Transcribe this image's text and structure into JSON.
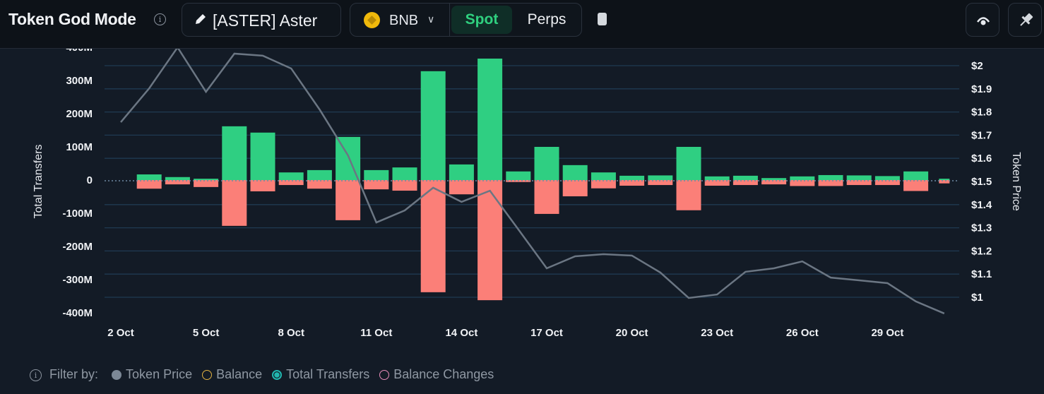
{
  "header": {
    "title": "Token God Mode",
    "token_label": "[ASTER] Aster",
    "chain_label": "BNB",
    "market_tabs": [
      {
        "label": "Spot",
        "active": true
      },
      {
        "label": "Perps",
        "active": false
      }
    ],
    "icons": [
      "info-icon",
      "pencil-icon",
      "bnb-coin-icon",
      "chevron-down-icon",
      "copy-icon",
      "eye-icon",
      "pin-icon"
    ]
  },
  "legend": {
    "filter_label": "Filter by:",
    "items": [
      {
        "label": "Token Price",
        "color": "#7c8896",
        "state": "filled"
      },
      {
        "label": "Balance",
        "color": "#e3b341",
        "state": "outline"
      },
      {
        "label": "Total Transfers",
        "color": "#21b8b0",
        "state": "selected"
      },
      {
        "label": "Balance Changes",
        "color": "#e58bb8",
        "state": "outline"
      }
    ]
  },
  "chart_data": {
    "type": "bar+line",
    "ylabel": "Total Transfers",
    "ylabel_right": "Token Price",
    "ylim": [
      -400000000,
      400000000
    ],
    "ylim_right": [
      0.9,
      2.1
    ],
    "yticks": [
      "400M",
      "300M",
      "200M",
      "100M",
      "0",
      "-100M",
      "-200M",
      "-300M",
      "-400M"
    ],
    "yticks_right": [
      "$2",
      "$1.9",
      "$1.8",
      "$1.7",
      "$1.6",
      "$1.5",
      "$1.4",
      "$1.3",
      "$1.2",
      "$1.1",
      "$1"
    ],
    "xticks": [
      "2 Oct",
      "5 Oct",
      "8 Oct",
      "11 Oct",
      "14 Oct",
      "17 Oct",
      "20 Oct",
      "23 Oct",
      "26 Oct",
      "29 Oct"
    ],
    "grid": true,
    "x": [
      "2 Oct",
      "3 Oct",
      "4 Oct",
      "5 Oct",
      "6 Oct",
      "7 Oct",
      "8 Oct",
      "9 Oct",
      "10 Oct",
      "11 Oct",
      "12 Oct",
      "13 Oct",
      "14 Oct",
      "15 Oct",
      "16 Oct",
      "17 Oct",
      "18 Oct",
      "19 Oct",
      "20 Oct",
      "21 Oct",
      "22 Oct",
      "23 Oct",
      "24 Oct",
      "25 Oct",
      "26 Oct",
      "27 Oct",
      "28 Oct",
      "29 Oct",
      "30 Oct",
      "31 Oct"
    ],
    "series": [
      {
        "name": "Token Price",
        "axis": "right",
        "color": "#6b7683",
        "values": [
          1.756,
          1.902,
          2.079,
          1.887,
          2.052,
          2.043,
          1.988,
          1.811,
          1.613,
          1.323,
          1.375,
          1.473,
          1.412,
          1.46,
          1.293,
          1.125,
          1.177,
          1.186,
          1.18,
          1.107,
          0.997,
          1.012,
          1.11,
          1.125,
          1.155,
          1.085,
          1.073,
          1.061,
          0.982,
          0.93
        ]
      },
      {
        "name": "Total Transfers",
        "axis": "left",
        "inflow_color": "#2fcf82",
        "outflow_color": "#fb7f78",
        "inflow": [
          null,
          17000000,
          9000000,
          4000000,
          162000000,
          143000000,
          23000000,
          30000000,
          130000000,
          30000000,
          38000000,
          328000000,
          47000000,
          366000000,
          26000000,
          100000000,
          45000000,
          23000000,
          13000000,
          14000000,
          100000000,
          11000000,
          13000000,
          6000000,
          11000000,
          15000000,
          14000000,
          12000000,
          26000000,
          4000000
        ],
        "outflow": [
          null,
          -26000000,
          -13000000,
          -21000000,
          -138000000,
          -34000000,
          -15000000,
          -26000000,
          -121000000,
          -28000000,
          -32000000,
          -338000000,
          -43000000,
          -362000000,
          -6000000,
          -102000000,
          -49000000,
          -25000000,
          -17000000,
          -15000000,
          -91000000,
          -17000000,
          -15000000,
          -13000000,
          -18000000,
          -18000000,
          -15000000,
          -15000000,
          -33000000,
          -10000000
        ]
      }
    ]
  }
}
